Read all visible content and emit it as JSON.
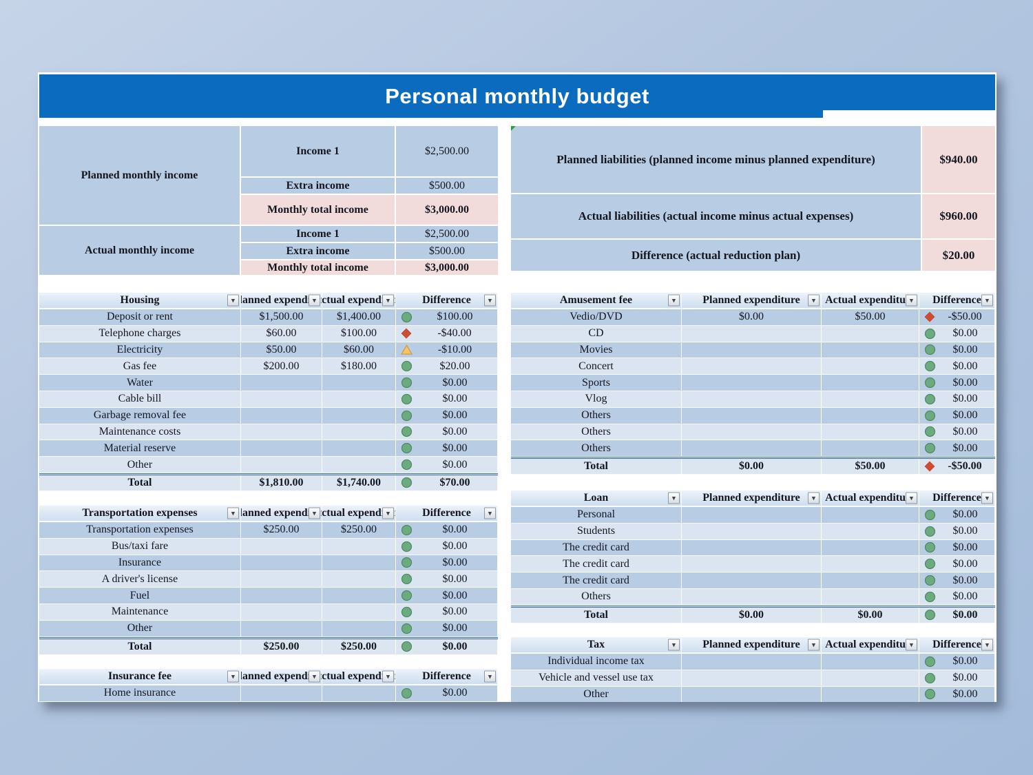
{
  "title": "Personal monthly budget",
  "income": {
    "planned_label": "Planned monthly income",
    "actual_label": "Actual monthly income",
    "planned_rows": [
      {
        "name": "Income 1",
        "value": "$2,500.00"
      },
      {
        "name": "Extra income",
        "value": "$500.00"
      },
      {
        "name": "Monthly total income",
        "value": "$3,000.00"
      }
    ],
    "actual_rows": [
      {
        "name": "Income 1",
        "value": "$2,500.00"
      },
      {
        "name": "Extra income",
        "value": "$500.00"
      },
      {
        "name": "Monthly total income",
        "value": "$3,000.00"
      }
    ]
  },
  "liabilities": {
    "rows": [
      {
        "label": "Planned liabilities (planned income minus planned expenditure)",
        "value": "$940.00"
      },
      {
        "label": "Actual liabilities (actual income minus actual expenses)",
        "value": "$960.00"
      },
      {
        "label": "Difference (actual reduction plan)",
        "value": "$20.00"
      }
    ]
  },
  "columns": {
    "planned": "Planned expenditure",
    "actual": "Actual expenditure",
    "difference": "Difference"
  },
  "icons": {
    "good": "green-circle",
    "bad": "red-diamond",
    "warn": "amber-triangle"
  },
  "colors": {
    "title_bar": "#0b6cbf",
    "band_medium": "#b8cce4",
    "band_light": "#dbe5f1",
    "highlight_pink": "#f2dcdb",
    "icon_green": "#6cab80",
    "icon_red": "#cf4c33",
    "icon_amber": "#f3c46e"
  },
  "tables": {
    "housing": {
      "title": "Housing",
      "rows": [
        {
          "name": "Deposit or rent",
          "planned": "$1,500.00",
          "actual": "$1,400.00",
          "icon": "green-circle",
          "diff": "$100.00"
        },
        {
          "name": "Telephone charges",
          "planned": "$60.00",
          "actual": "$100.00",
          "icon": "red-diamond",
          "diff": "-$40.00"
        },
        {
          "name": "Electricity",
          "planned": "$50.00",
          "actual": "$60.00",
          "icon": "amber-triangle",
          "diff": "-$10.00"
        },
        {
          "name": "Gas fee",
          "planned": "$200.00",
          "actual": "$180.00",
          "icon": "green-circle",
          "diff": "$20.00"
        },
        {
          "name": "Water",
          "planned": "",
          "actual": "",
          "icon": "green-circle",
          "diff": "$0.00"
        },
        {
          "name": "Cable bill",
          "planned": "",
          "actual": "",
          "icon": "green-circle",
          "diff": "$0.00"
        },
        {
          "name": "Garbage removal fee",
          "planned": "",
          "actual": "",
          "icon": "green-circle",
          "diff": "$0.00"
        },
        {
          "name": "Maintenance costs",
          "planned": "",
          "actual": "",
          "icon": "green-circle",
          "diff": "$0.00"
        },
        {
          "name": "Material reserve",
          "planned": "",
          "actual": "",
          "icon": "green-circle",
          "diff": "$0.00"
        },
        {
          "name": "Other",
          "planned": "",
          "actual": "",
          "icon": "green-circle",
          "diff": "$0.00"
        }
      ],
      "total": {
        "name": "Total",
        "planned": "$1,810.00",
        "actual": "$1,740.00",
        "icon": "green-circle",
        "diff": "$70.00"
      }
    },
    "transportation": {
      "title": "Transportation expenses",
      "rows": [
        {
          "name": "Transportation expenses",
          "planned": "$250.00",
          "actual": "$250.00",
          "icon": "green-circle",
          "diff": "$0.00"
        },
        {
          "name": "Bus/taxi fare",
          "planned": "",
          "actual": "",
          "icon": "green-circle",
          "diff": "$0.00"
        },
        {
          "name": "Insurance",
          "planned": "",
          "actual": "",
          "icon": "green-circle",
          "diff": "$0.00"
        },
        {
          "name": "A driver's license",
          "planned": "",
          "actual": "",
          "icon": "green-circle",
          "diff": "$0.00"
        },
        {
          "name": "Fuel",
          "planned": "",
          "actual": "",
          "icon": "green-circle",
          "diff": "$0.00"
        },
        {
          "name": "Maintenance",
          "planned": "",
          "actual": "",
          "icon": "green-circle",
          "diff": "$0.00"
        },
        {
          "name": "Other",
          "planned": "",
          "actual": "",
          "icon": "green-circle",
          "diff": "$0.00"
        }
      ],
      "total": {
        "name": "Total",
        "planned": "$250.00",
        "actual": "$250.00",
        "icon": "green-circle",
        "diff": "$0.00"
      }
    },
    "insurance": {
      "title": "Insurance fee",
      "rows": [
        {
          "name": "Home insurance",
          "planned": "",
          "actual": "",
          "icon": "green-circle",
          "diff": "$0.00"
        }
      ],
      "total": null
    },
    "amusement": {
      "title": "Amusement fee",
      "rows": [
        {
          "name": "Vedio/DVD",
          "planned": "$0.00",
          "actual": "$50.00",
          "icon": "red-diamond",
          "diff": "-$50.00"
        },
        {
          "name": "CD",
          "planned": "",
          "actual": "",
          "icon": "green-circle",
          "diff": "$0.00"
        },
        {
          "name": "Movies",
          "planned": "",
          "actual": "",
          "icon": "green-circle",
          "diff": "$0.00"
        },
        {
          "name": "Concert",
          "planned": "",
          "actual": "",
          "icon": "green-circle",
          "diff": "$0.00"
        },
        {
          "name": "Sports",
          "planned": "",
          "actual": "",
          "icon": "green-circle",
          "diff": "$0.00"
        },
        {
          "name": "Vlog",
          "planned": "",
          "actual": "",
          "icon": "green-circle",
          "diff": "$0.00"
        },
        {
          "name": "Others",
          "planned": "",
          "actual": "",
          "icon": "green-circle",
          "diff": "$0.00"
        },
        {
          "name": "Others",
          "planned": "",
          "actual": "",
          "icon": "green-circle",
          "diff": "$0.00"
        },
        {
          "name": "Others",
          "planned": "",
          "actual": "",
          "icon": "green-circle",
          "diff": "$0.00"
        }
      ],
      "total": {
        "name": "Total",
        "planned": "$0.00",
        "actual": "$50.00",
        "icon": "red-diamond",
        "diff": "-$50.00"
      }
    },
    "loan": {
      "title": "Loan",
      "rows": [
        {
          "name": "Personal",
          "planned": "",
          "actual": "",
          "icon": "green-circle",
          "diff": "$0.00"
        },
        {
          "name": "Students",
          "planned": "",
          "actual": "",
          "icon": "green-circle",
          "diff": "$0.00"
        },
        {
          "name": "The credit card",
          "planned": "",
          "actual": "",
          "icon": "green-circle",
          "diff": "$0.00"
        },
        {
          "name": "The credit card",
          "planned": "",
          "actual": "",
          "icon": "green-circle",
          "diff": "$0.00"
        },
        {
          "name": "The credit card",
          "planned": "",
          "actual": "",
          "icon": "green-circle",
          "diff": "$0.00"
        },
        {
          "name": "Others",
          "planned": "",
          "actual": "",
          "icon": "green-circle",
          "diff": "$0.00"
        }
      ],
      "total": {
        "name": "Total",
        "planned": "$0.00",
        "actual": "$0.00",
        "icon": "green-circle",
        "diff": "$0.00"
      }
    },
    "tax": {
      "title": "Tax",
      "rows": [
        {
          "name": "Individual income tax",
          "planned": "",
          "actual": "",
          "icon": "green-circle",
          "diff": "$0.00"
        },
        {
          "name": "Vehicle and vessel use tax",
          "planned": "",
          "actual": "",
          "icon": "green-circle",
          "diff": "$0.00"
        },
        {
          "name": "Other",
          "planned": "",
          "actual": "",
          "icon": "green-circle",
          "diff": "$0.00"
        }
      ],
      "total": null
    }
  }
}
